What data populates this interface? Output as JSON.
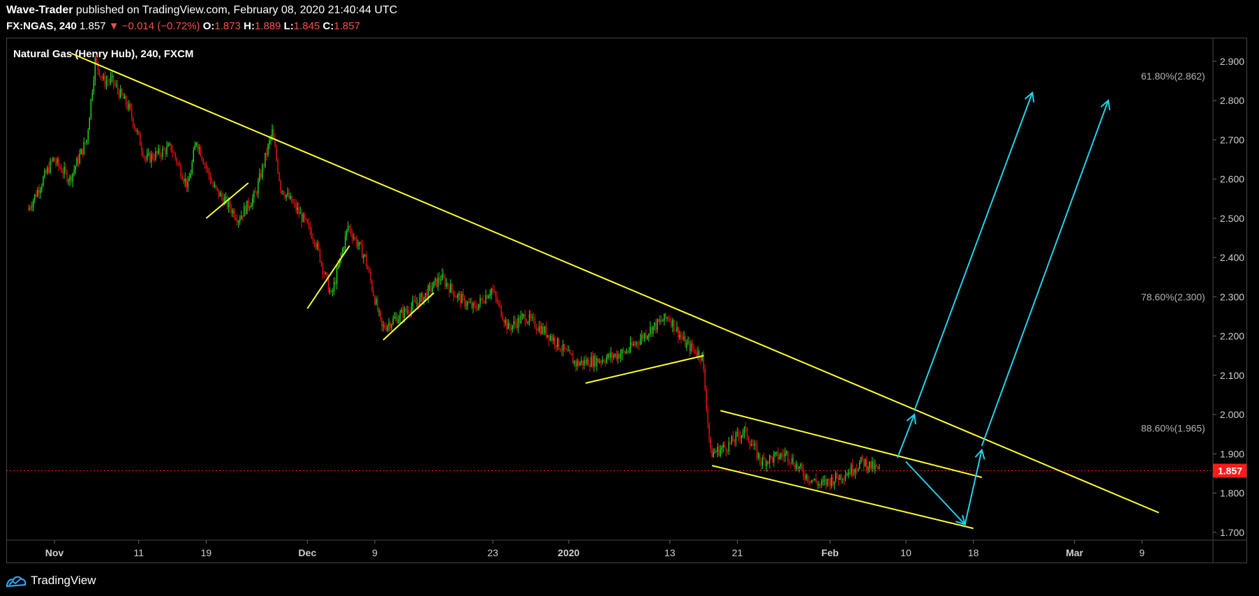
{
  "header": {
    "author": "Wave-Trader",
    "published": "published on TradingView.com, February 08, 2020 21:40:44 UTC",
    "symbol": "FX:NGAS, 240",
    "last": "1.857",
    "change_arrow": "▼",
    "change": "−0.014 (−0.72%)",
    "o_label": "O:",
    "o": "1.873",
    "h_label": "H:",
    "h": "1.889",
    "l_label": "L:",
    "l": "1.845",
    "c_label": "C:",
    "c": "1.857"
  },
  "footer": {
    "brand": "TradingView"
  },
  "colors": {
    "background": "#000000",
    "up": "#22dd22",
    "down": "#ee1111",
    "trendline": "#ffff33",
    "arrow": "#22d3ee",
    "price_tag": "#ff1a1a",
    "axis_text": "#cfcfcf",
    "fib_text": "#b0b0b0"
  },
  "chart_data": {
    "type": "candlestick",
    "title": "Natural Gas (Henry Hub), 240, FXCM",
    "y_range": [
      1.68,
      2.96
    ],
    "y_ticks": [
      "2.900",
      "2.800",
      "2.700",
      "2.600",
      "2.500",
      "2.400",
      "2.300",
      "2.200",
      "2.100",
      "2.000",
      "1.900",
      "1.800",
      "1.700"
    ],
    "x_ticks": [
      "Nov",
      "11",
      "19",
      "Dec",
      "9",
      "23",
      "2020",
      "13",
      "21",
      "Feb",
      "10",
      "18",
      "Mar",
      "9"
    ],
    "last_price": "1.857",
    "price_path": [
      [
        "Oct 30",
        2.52
      ],
      [
        "Nov 1",
        2.65
      ],
      [
        "Nov 3",
        2.6
      ],
      [
        "Nov 5",
        2.7
      ],
      [
        "Nov 6",
        2.9
      ],
      [
        "Nov 7",
        2.85
      ],
      [
        "Nov 8",
        2.85
      ],
      [
        "Nov 10",
        2.78
      ],
      [
        "Nov 12",
        2.65
      ],
      [
        "Nov 15",
        2.68
      ],
      [
        "Nov 17",
        2.58
      ],
      [
        "Nov 18",
        2.7
      ],
      [
        "Nov 20",
        2.58
      ],
      [
        "Nov 23",
        2.5
      ],
      [
        "Nov 25",
        2.56
      ],
      [
        "Nov 27",
        2.72
      ],
      [
        "Nov 28",
        2.58
      ],
      [
        "Nov 30",
        2.52
      ],
      [
        "Dec 2",
        2.45
      ],
      [
        "Dec 4",
        2.3
      ],
      [
        "Dec 6",
        2.48
      ],
      [
        "Dec 8",
        2.4
      ],
      [
        "Dec 10",
        2.22
      ],
      [
        "Dec 12",
        2.25
      ],
      [
        "Dec 15",
        2.3
      ],
      [
        "Dec 17",
        2.35
      ],
      [
        "Dec 19",
        2.3
      ],
      [
        "Dec 21",
        2.27
      ],
      [
        "Dec 23",
        2.32
      ],
      [
        "Dec 25",
        2.22
      ],
      [
        "Dec 27",
        2.25
      ],
      [
        "Dec 30",
        2.2
      ],
      [
        "Jan 2",
        2.13
      ],
      [
        "Jan 5",
        2.14
      ],
      [
        "Jan 8",
        2.16
      ],
      [
        "Jan 11",
        2.22
      ],
      [
        "Jan 13",
        2.25
      ],
      [
        "Jan 15",
        2.18
      ],
      [
        "Jan 17",
        2.15
      ],
      [
        "Jan 18",
        1.9
      ],
      [
        "Jan 20",
        1.92
      ],
      [
        "Jan 22",
        1.96
      ],
      [
        "Jan 24",
        1.88
      ],
      [
        "Jan 27",
        1.9
      ],
      [
        "Jan 29",
        1.85
      ],
      [
        "Jan 31",
        1.82
      ],
      [
        "Feb 3",
        1.85
      ],
      [
        "Feb 5",
        1.88
      ],
      [
        "Feb 7",
        1.857
      ]
    ],
    "fib_levels": [
      {
        "label": "61.80%(2.862)",
        "price": 2.862
      },
      {
        "label": "78.60%(2.300)",
        "price": 2.3
      },
      {
        "label": "88.60%(1.965)",
        "price": 1.965
      }
    ],
    "trendlines": [
      {
        "from": [
          "Nov 3",
          2.92
        ],
        "to": [
          "Mar 11",
          1.75
        ]
      },
      {
        "from": [
          "Nov 19",
          2.5
        ],
        "to": [
          "Nov 24",
          2.59
        ]
      },
      {
        "from": [
          "Dec 1",
          2.27
        ],
        "to": [
          "Dec 6",
          2.43
        ]
      },
      {
        "from": [
          "Dec 10",
          2.19
        ],
        "to": [
          "Dec 16",
          2.31
        ]
      },
      {
        "from": [
          "Jan 3",
          2.08
        ],
        "to": [
          "Jan 17",
          2.15
        ]
      },
      {
        "from": [
          "Jan 19",
          2.01
        ],
        "to": [
          "Feb 19",
          1.84
        ]
      },
      {
        "from": [
          "Jan 18",
          1.87
        ],
        "to": [
          "Feb 18",
          1.71
        ]
      }
    ],
    "arrows": [
      {
        "points": [
          [
            "Feb 9",
            1.89
          ],
          [
            "Feb 11",
            2.0
          ]
        ]
      },
      {
        "points": [
          [
            "Feb 11",
            2.01
          ],
          [
            "Feb 25",
            2.82
          ]
        ]
      },
      {
        "points": [
          [
            "Feb 10",
            1.88
          ],
          [
            "Feb 17",
            1.72
          ]
        ]
      },
      {
        "points": [
          [
            "Feb 17",
            1.72
          ],
          [
            "Feb 19",
            1.91
          ]
        ]
      },
      {
        "points": [
          [
            "Feb 19",
            1.92
          ],
          [
            "Mar 5",
            2.8
          ]
        ]
      }
    ]
  }
}
